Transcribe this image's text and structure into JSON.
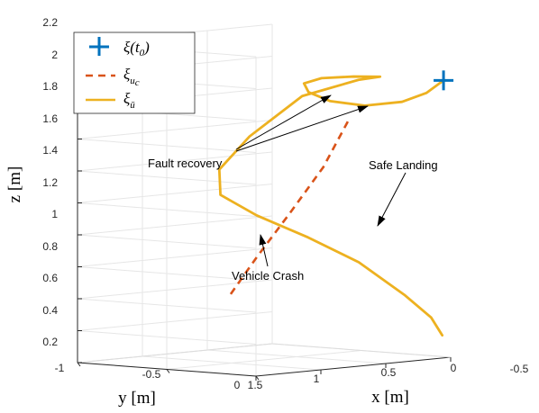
{
  "chart_data": {
    "type": "line3d",
    "zlabel": "z [m]",
    "ylabel": "y [m]",
    "xlabel": "x [m]",
    "zlim": [
      0.2,
      2.2
    ],
    "z_ticks": [
      "0.2",
      "0.4",
      "0.6",
      "0.8",
      "1",
      "1.2",
      "1.4",
      "1.6",
      "1.8",
      "2",
      "2.2"
    ],
    "y_ticks": [
      "-1",
      "-0.5",
      "0"
    ],
    "x_ticks": [
      "1.5",
      "1",
      "0.5",
      "0",
      "-0.5"
    ],
    "grid": true,
    "legend_position": "top-left",
    "legend": [
      {
        "marker": "plus",
        "color": "#0072BD",
        "label_main": "ξ(t",
        "label_sub": "0",
        "label_close": ")"
      },
      {
        "marker": "dash",
        "color": "#D95319",
        "label_main": "ξ",
        "label_sub": "u_c"
      },
      {
        "marker": "line",
        "color": "#EDB120",
        "label_main": "ξ",
        "label_sub": "ū"
      }
    ],
    "series": [
      {
        "role": "initial-state",
        "style": "marker",
        "points": [
          [
            0.0,
            -0.04,
            1.93
          ]
        ]
      },
      {
        "role": "crash-trajectory",
        "style": "dashed",
        "points": [
          [
            0.38,
            -0.3,
            1.68
          ],
          [
            0.5,
            -0.35,
            1.4
          ],
          [
            0.66,
            -0.42,
            1.12
          ],
          [
            0.82,
            -0.49,
            0.85
          ],
          [
            0.96,
            -0.55,
            0.6
          ]
        ]
      },
      {
        "role": "recovery-trajectory",
        "style": "solid",
        "points": [
          [
            0.0,
            -0.04,
            1.93
          ],
          [
            0.05,
            -0.1,
            1.85
          ],
          [
            0.1,
            -0.2,
            1.79
          ],
          [
            0.18,
            -0.35,
            1.76
          ],
          [
            0.24,
            -0.5,
            1.78
          ],
          [
            0.27,
            -0.6,
            1.83
          ],
          [
            0.25,
            -0.64,
            1.88
          ],
          [
            0.17,
            -0.6,
            1.91
          ],
          [
            0.06,
            -0.5,
            1.92
          ],
          [
            -0.02,
            -0.41,
            1.92
          ],
          [
            0.05,
            -0.48,
            1.9
          ],
          [
            0.25,
            -0.65,
            1.8
          ],
          [
            0.45,
            -0.8,
            1.55
          ],
          [
            0.6,
            -0.86,
            1.35
          ],
          [
            0.66,
            -0.81,
            1.2
          ],
          [
            0.6,
            -0.65,
            1.08
          ],
          [
            0.48,
            -0.45,
            0.95
          ],
          [
            0.35,
            -0.26,
            0.8
          ],
          [
            0.22,
            -0.1,
            0.6
          ],
          [
            0.15,
            0.0,
            0.46
          ],
          [
            0.12,
            0.04,
            0.35
          ]
        ]
      }
    ],
    "annotations": [
      {
        "text": "Fault recovery",
        "targets": 2
      },
      {
        "text": "Safe Landing",
        "targets": 1
      },
      {
        "text": "Vehicle Crash",
        "targets": 1
      }
    ]
  },
  "colors": {
    "grid": "#e6e6e6",
    "axis": "#262626",
    "initial": "#0072BD",
    "crash": "#D95319",
    "recovery": "#EDB120",
    "arrow": "#000000"
  }
}
